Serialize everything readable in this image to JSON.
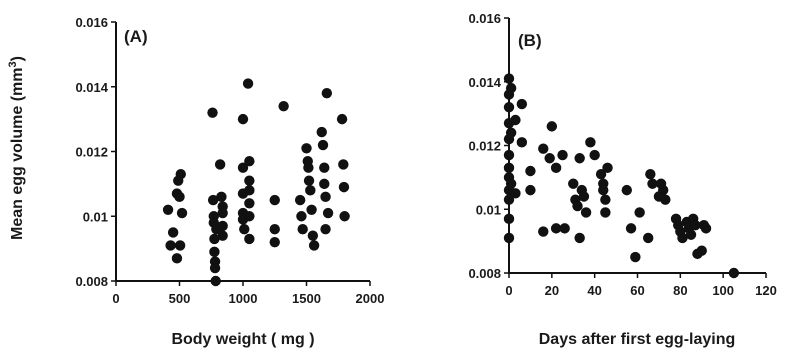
{
  "colors": {
    "ink": "#111111",
    "point": "#111111",
    "background": "#ffffff"
  },
  "chart_data": [
    {
      "type": "scatter",
      "title": "(A)",
      "xlabel": "Body weight ( mg )",
      "ylabel": "Mean egg volume (mm",
      "ylabel_sup": "3",
      "ylabel_end": ")",
      "xlim": [
        0,
        2000
      ],
      "ylim": [
        0.008,
        0.016
      ],
      "xticks": [
        {
          "value": 0,
          "label": "0"
        },
        {
          "value": 500,
          "label": "500"
        },
        {
          "value": 1000,
          "label": "1000"
        },
        {
          "value": 1500,
          "label": "1500"
        },
        {
          "value": 2000,
          "label": "2000"
        }
      ],
      "yticks": [
        {
          "value": 0.008,
          "label": "0.008"
        },
        {
          "value": 0.01,
          "label": "0.01"
        },
        {
          "value": 0.012,
          "label": "0.012"
        },
        {
          "value": 0.014,
          "label": "0.014"
        },
        {
          "value": 0.016,
          "label": "0.016"
        }
      ],
      "grid": false,
      "points": [
        [
          410,
          0.0102
        ],
        [
          430,
          0.0091
        ],
        [
          450,
          0.0095
        ],
        [
          480,
          0.0107
        ],
        [
          490,
          0.0111
        ],
        [
          500,
          0.0106
        ],
        [
          505,
          0.0091
        ],
        [
          510,
          0.0113
        ],
        [
          520,
          0.0101
        ],
        [
          480,
          0.0087
        ],
        [
          760,
          0.0132
        ],
        [
          765,
          0.0105
        ],
        [
          770,
          0.01
        ],
        [
          770,
          0.0098
        ],
        [
          775,
          0.0093
        ],
        [
          775,
          0.0089
        ],
        [
          780,
          0.0086
        ],
        [
          780,
          0.0084
        ],
        [
          785,
          0.008
        ],
        [
          790,
          0.0096
        ],
        [
          820,
          0.0116
        ],
        [
          830,
          0.0106
        ],
        [
          840,
          0.0103
        ],
        [
          840,
          0.0101
        ],
        [
          840,
          0.0097
        ],
        [
          840,
          0.0094
        ],
        [
          1000,
          0.013
        ],
        [
          1000,
          0.0115
        ],
        [
          1000,
          0.0107
        ],
        [
          1000,
          0.0101
        ],
        [
          1000,
          0.0099
        ],
        [
          1010,
          0.0096
        ],
        [
          1040,
          0.0141
        ],
        [
          1050,
          0.0117
        ],
        [
          1050,
          0.0111
        ],
        [
          1050,
          0.0108
        ],
        [
          1050,
          0.0104
        ],
        [
          1050,
          0.01
        ],
        [
          1050,
          0.0093
        ],
        [
          1250,
          0.0105
        ],
        [
          1250,
          0.0096
        ],
        [
          1250,
          0.0092
        ],
        [
          1320,
          0.0134
        ],
        [
          1450,
          0.0105
        ],
        [
          1460,
          0.01
        ],
        [
          1470,
          0.0096
        ],
        [
          1500,
          0.0121
        ],
        [
          1510,
          0.0117
        ],
        [
          1515,
          0.0115
        ],
        [
          1520,
          0.0111
        ],
        [
          1530,
          0.0108
        ],
        [
          1540,
          0.0102
        ],
        [
          1550,
          0.0094
        ],
        [
          1560,
          0.0091
        ],
        [
          1620,
          0.0126
        ],
        [
          1630,
          0.0122
        ],
        [
          1640,
          0.0115
        ],
        [
          1640,
          0.011
        ],
        [
          1650,
          0.0106
        ],
        [
          1650,
          0.0096
        ],
        [
          1660,
          0.0138
        ],
        [
          1670,
          0.0101
        ],
        [
          1780,
          0.013
        ],
        [
          1790,
          0.0116
        ],
        [
          1795,
          0.0109
        ],
        [
          1800,
          0.01
        ]
      ]
    },
    {
      "type": "scatter",
      "title": "(B)",
      "xlabel": "Days after first egg-laying",
      "ylabel": "",
      "xlim": [
        0,
        120
      ],
      "ylim": [
        0.008,
        0.016
      ],
      "xticks": [
        {
          "value": 0,
          "label": "0"
        },
        {
          "value": 20,
          "label": "20"
        },
        {
          "value": 40,
          "label": "40"
        },
        {
          "value": 60,
          "label": "60"
        },
        {
          "value": 80,
          "label": "80"
        },
        {
          "value": 100,
          "label": "100"
        },
        {
          "value": 120,
          "label": "120"
        }
      ],
      "yticks": [
        {
          "value": 0.008,
          "label": "0.008"
        },
        {
          "value": 0.01,
          "label": "0.01"
        },
        {
          "value": 0.012,
          "label": "0.012"
        },
        {
          "value": 0.014,
          "label": "0.014"
        },
        {
          "value": 0.016,
          "label": "0.016"
        }
      ],
      "grid": false,
      "points": [
        [
          0,
          0.0141
        ],
        [
          0,
          0.0136
        ],
        [
          0,
          0.0132
        ],
        [
          0,
          0.0127
        ],
        [
          0,
          0.0122
        ],
        [
          0,
          0.0117
        ],
        [
          0,
          0.0113
        ],
        [
          0,
          0.011
        ],
        [
          0,
          0.0106
        ],
        [
          0,
          0.0103
        ],
        [
          0,
          0.0097
        ],
        [
          0,
          0.0091
        ],
        [
          1,
          0.0138
        ],
        [
          1,
          0.0124
        ],
        [
          1,
          0.0108
        ],
        [
          3,
          0.0128
        ],
        [
          3,
          0.0105
        ],
        [
          6,
          0.0133
        ],
        [
          6,
          0.0121
        ],
        [
          10,
          0.0112
        ],
        [
          10,
          0.0106
        ],
        [
          16,
          0.0119
        ],
        [
          16,
          0.0093
        ],
        [
          19,
          0.0116
        ],
        [
          20,
          0.0126
        ],
        [
          22,
          0.0113
        ],
        [
          22,
          0.0094
        ],
        [
          25,
          0.0117
        ],
        [
          26,
          0.0094
        ],
        [
          30,
          0.0108
        ],
        [
          31,
          0.0103
        ],
        [
          32,
          0.0101
        ],
        [
          33,
          0.0091
        ],
        [
          33,
          0.0116
        ],
        [
          34,
          0.0106
        ],
        [
          35,
          0.0104
        ],
        [
          36,
          0.0099
        ],
        [
          38,
          0.0121
        ],
        [
          40,
          0.0117
        ],
        [
          43,
          0.0111
        ],
        [
          44,
          0.0108
        ],
        [
          44,
          0.0106
        ],
        [
          45,
          0.0103
        ],
        [
          45,
          0.0099
        ],
        [
          46,
          0.0113
        ],
        [
          55,
          0.0106
        ],
        [
          57,
          0.0094
        ],
        [
          59,
          0.0085
        ],
        [
          61,
          0.0099
        ],
        [
          65,
          0.0091
        ],
        [
          66,
          0.0111
        ],
        [
          67,
          0.0108
        ],
        [
          70,
          0.0104
        ],
        [
          71,
          0.0108
        ],
        [
          72,
          0.0106
        ],
        [
          73,
          0.0103
        ],
        [
          78,
          0.0097
        ],
        [
          79,
          0.0095
        ],
        [
          80,
          0.0093
        ],
        [
          81,
          0.0091
        ],
        [
          83,
          0.0096
        ],
        [
          84,
          0.0094
        ],
        [
          85,
          0.0092
        ],
        [
          86,
          0.0097
        ],
        [
          87,
          0.0095
        ],
        [
          88,
          0.0086
        ],
        [
          90,
          0.0087
        ],
        [
          91,
          0.0095
        ],
        [
          92,
          0.0094
        ],
        [
          105,
          0.008
        ]
      ]
    }
  ]
}
